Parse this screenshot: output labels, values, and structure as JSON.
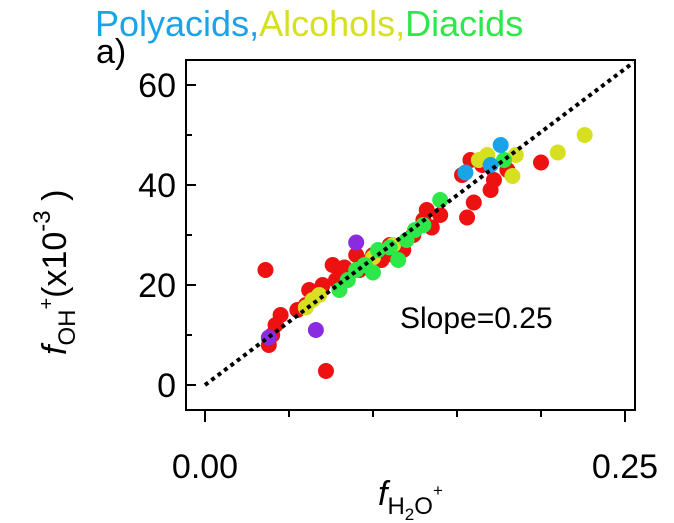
{
  "panel_label": "a)",
  "chart_data": {
    "type": "scatter",
    "title_parts": [
      {
        "text": "Polyacids,",
        "color": "#1aa3e8"
      },
      {
        "text": "Alcohols,",
        "color": "#d6e020"
      },
      {
        "text": "Diacids",
        "color": "#2ee84a"
      }
    ],
    "xlabel": {
      "base": "f",
      "sub": "H",
      "sub2": "2",
      "rest": "O",
      "sup": "+"
    },
    "ylabel": {
      "base": "f",
      "sub": "OH",
      "sup": "+",
      "scale_text": "(x10",
      "scale_exp": "-3",
      "scale_close": ")"
    },
    "xlim": [
      0,
      0.25
    ],
    "ylim": [
      -5,
      65
    ],
    "x_ticks": [
      0.0,
      0.25
    ],
    "x_tick_labels": [
      "0.00",
      "0.25"
    ],
    "x_minor_ticks": [
      0.05,
      0.1,
      0.15,
      0.2
    ],
    "y_ticks": [
      0,
      20,
      40,
      60
    ],
    "y_tick_labels": [
      "0",
      "20",
      "40",
      "60"
    ],
    "y_minor_ticks": [
      10,
      30,
      50
    ],
    "annotation": "Slope=0.25",
    "fit_line": {
      "x": [
        0.0,
        0.255
      ],
      "y": [
        0.0,
        64.5
      ],
      "color": "#000000",
      "style": "dotted"
    },
    "grid": false,
    "series": [
      {
        "color": "#ee1111",
        "points": [
          [
            0.036,
            23.0
          ],
          [
            0.038,
            8.0
          ],
          [
            0.04,
            10.0
          ],
          [
            0.042,
            12.0
          ],
          [
            0.045,
            14.0
          ],
          [
            0.055,
            15.0
          ],
          [
            0.06,
            16.0
          ],
          [
            0.062,
            19.0
          ],
          [
            0.066,
            18.0
          ],
          [
            0.07,
            20.0
          ],
          [
            0.072,
            2.8
          ],
          [
            0.076,
            24.0
          ],
          [
            0.078,
            21.0
          ],
          [
            0.081,
            22.0
          ],
          [
            0.083,
            23.5
          ],
          [
            0.09,
            26.0
          ],
          [
            0.092,
            23.0
          ],
          [
            0.095,
            24.5
          ],
          [
            0.1,
            26.0
          ],
          [
            0.105,
            25.0
          ],
          [
            0.11,
            28.0
          ],
          [
            0.112,
            26.0
          ],
          [
            0.118,
            27.0
          ],
          [
            0.124,
            30.0
          ],
          [
            0.13,
            33.0
          ],
          [
            0.132,
            35.0
          ],
          [
            0.135,
            31.5
          ],
          [
            0.14,
            34.0
          ],
          [
            0.153,
            42.0
          ],
          [
            0.156,
            33.5
          ],
          [
            0.158,
            45.0
          ],
          [
            0.16,
            36.5
          ],
          [
            0.165,
            44.0
          ],
          [
            0.17,
            39.0
          ],
          [
            0.172,
            41.0
          ],
          [
            0.18,
            43.0
          ],
          [
            0.2,
            44.5
          ]
        ]
      },
      {
        "color": "#d6e020",
        "points": [
          [
            0.06,
            15.5
          ],
          [
            0.064,
            17.0
          ],
          [
            0.068,
            18.0
          ],
          [
            0.1,
            25.5
          ],
          [
            0.112,
            28.0
          ],
          [
            0.163,
            45.0
          ],
          [
            0.168,
            46.0
          ],
          [
            0.183,
            41.8
          ],
          [
            0.185,
            46.0
          ],
          [
            0.21,
            46.5
          ],
          [
            0.226,
            50.0
          ]
        ]
      },
      {
        "color": "#2ee84a",
        "points": [
          [
            0.08,
            19.0
          ],
          [
            0.085,
            21.0
          ],
          [
            0.09,
            23.0
          ],
          [
            0.095,
            24.0
          ],
          [
            0.1,
            22.5
          ],
          [
            0.103,
            27.0
          ],
          [
            0.11,
            27.5
          ],
          [
            0.115,
            25.0
          ],
          [
            0.12,
            29.0
          ],
          [
            0.125,
            31.0
          ],
          [
            0.13,
            32.0
          ],
          [
            0.14,
            37.0
          ],
          [
            0.178,
            45.0
          ]
        ]
      },
      {
        "color": "#1aa3e8",
        "points": [
          [
            0.155,
            42.5
          ],
          [
            0.17,
            44.0
          ],
          [
            0.176,
            48.0
          ]
        ]
      },
      {
        "color": "#8a2be2",
        "points": [
          [
            0.038,
            9.5
          ],
          [
            0.066,
            11.0
          ],
          [
            0.09,
            28.5
          ]
        ]
      }
    ]
  }
}
